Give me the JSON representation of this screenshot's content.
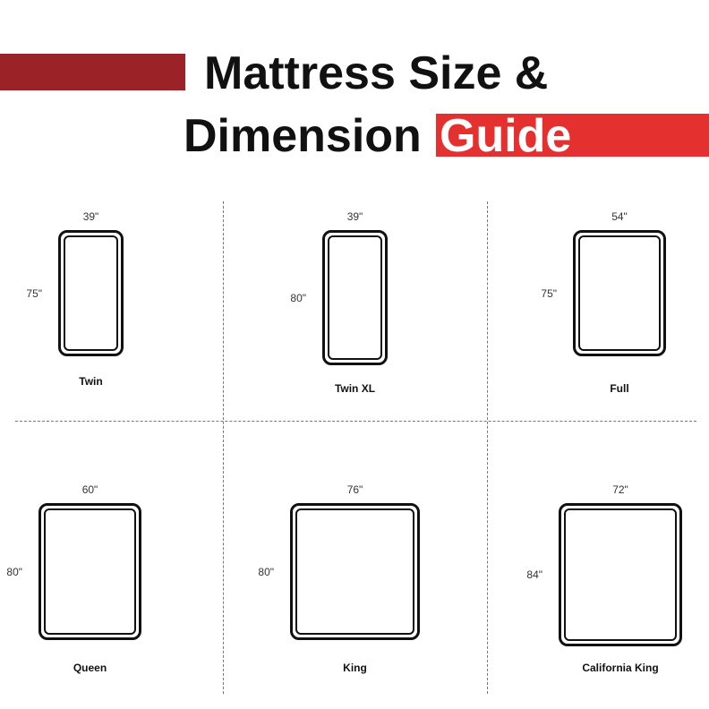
{
  "header": {
    "title_line1": "Mattress Size &",
    "title_line2": "Dimension",
    "title_highlight": "Guide",
    "accent_dark": "#9b2226",
    "accent_red": "#e53030"
  },
  "mattresses": [
    {
      "name": "Twin",
      "width": "39\"",
      "length": "75\""
    },
    {
      "name": "Twin XL",
      "width": "39\"",
      "length": "80\""
    },
    {
      "name": "Full",
      "width": "54\"",
      "length": "75\""
    },
    {
      "name": "Queen",
      "width": "60\"",
      "length": "80\""
    },
    {
      "name": "King",
      "width": "76\"",
      "length": "80\""
    },
    {
      "name": "California King",
      "width": "72\"",
      "length": "84\""
    }
  ]
}
